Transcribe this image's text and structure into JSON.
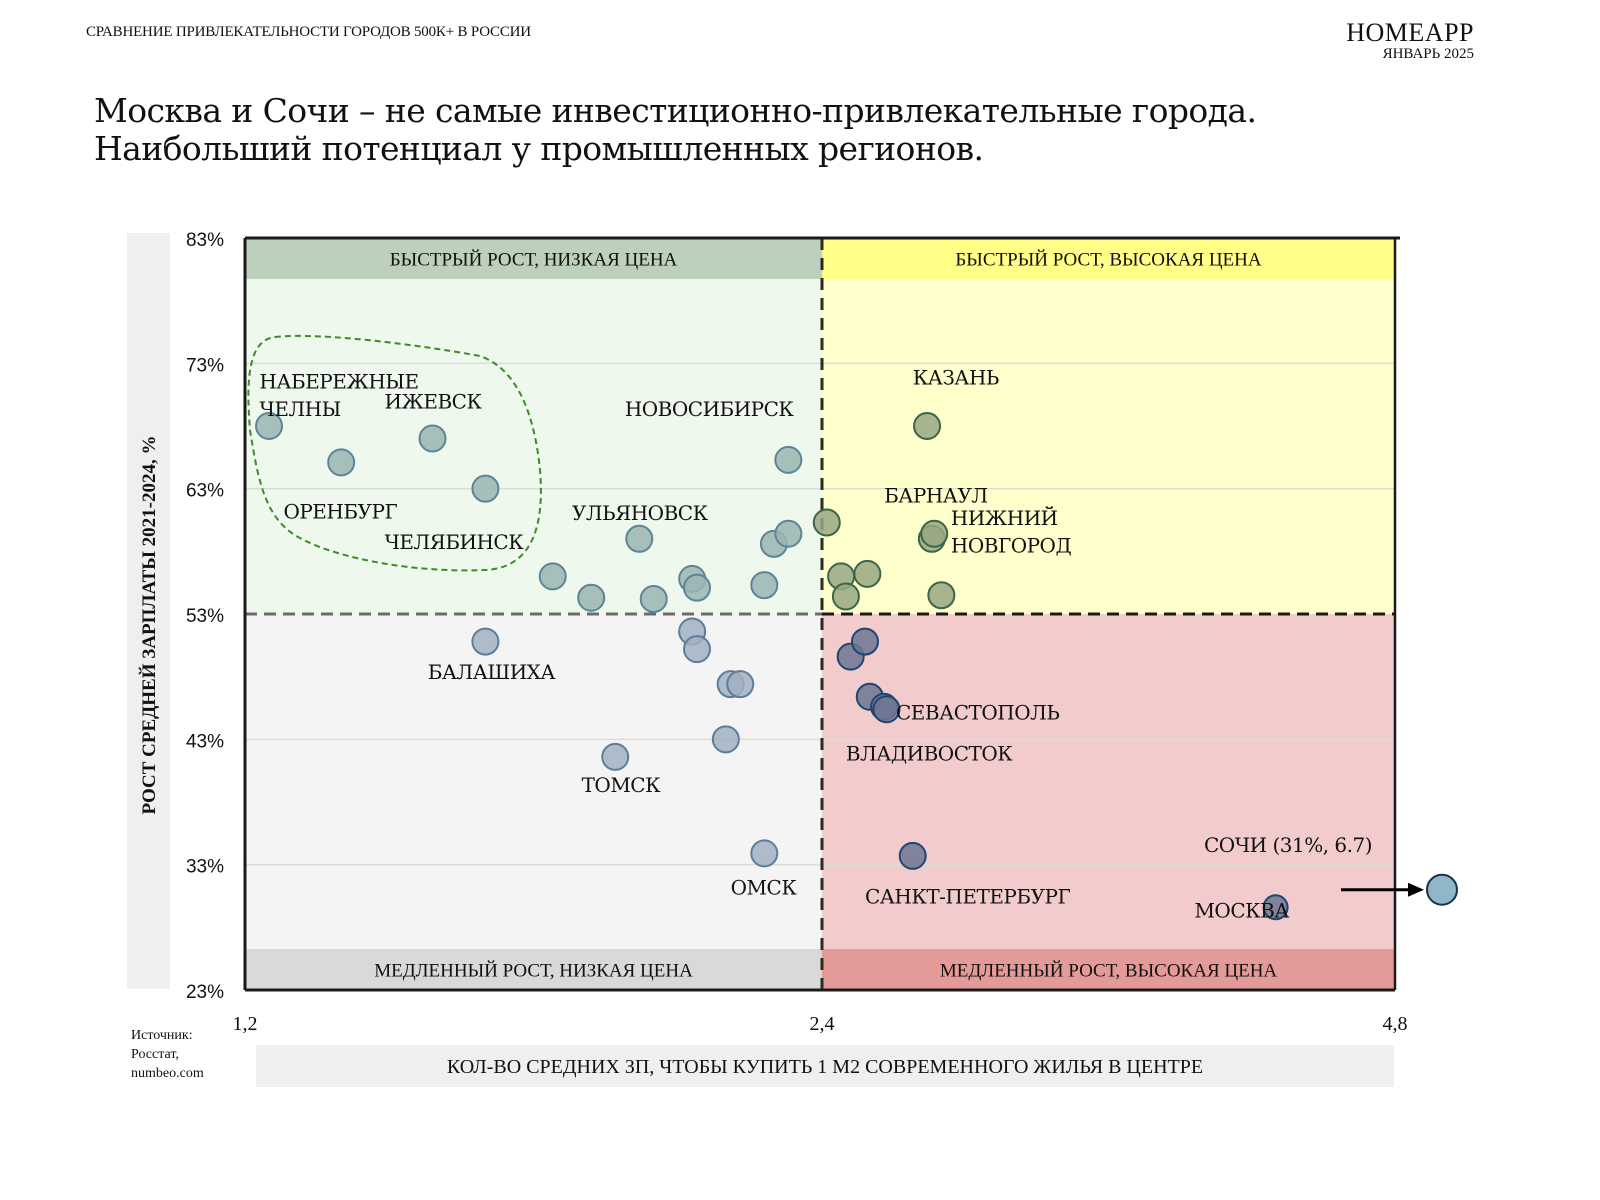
{
  "header": {
    "supertitle": "СРАВНЕНИЕ ПРИВЛЕКАТЕЛЬНОСТИ ГОРОДОВ 500К+ В РОССИИ",
    "brand": "HOMEAPP",
    "date": "ЯНВАРЬ 2025",
    "headline_line1": "Москва и Сочи – не самые инвестиционно-привлекательные города.",
    "headline_line2": "Наибольший потенциал у промышленных регионов."
  },
  "source": {
    "line1": "Источник:",
    "line2": "Росстат,",
    "line3": "numbeo.com"
  },
  "colors": {
    "q_top_left": "#eef8ec",
    "q_top_left_band": "#bdd0bb",
    "q_top_right": "#ffffcc",
    "q_top_right_band": "#ffff88",
    "q_bottom_left": "#f4f4f4",
    "q_bottom_left_band": "#d9d9d9",
    "q_bottom_right": "#f2cbcc",
    "q_bottom_right_band": "#e59a9a",
    "pt_top_left": "#9ab5b3",
    "pt_top_left_stroke": "#5d8497",
    "pt_top_right": "#96a881",
    "pt_top_right_stroke": "#3e6448",
    "pt_bottom_left": "#a0b0c2",
    "pt_bottom_left_stroke": "#5e7d9c",
    "pt_bottom_right": "#6d7593",
    "pt_bottom_right_stroke": "#1f4670",
    "pt_outlier": "#8fb7c9",
    "cluster_outline": "#3f8a2a"
  },
  "chart_data": {
    "type": "scatter",
    "title": "",
    "xlabel": "КОЛ-ВО СРЕДНИХ ЗП, ЧТОБЫ КУПИТЬ 1 М2 СОВРЕМЕННОГО ЖИЛЬЯ В ЦЕНТРЕ",
    "ylabel": "РОСТ СРЕДНЕЙ ЗАРПЛАТЫ 2021-2024, %",
    "xlim": [
      1.2,
      4.8
    ],
    "ylim": [
      23,
      83
    ],
    "x_split": 2.4,
    "y_split": 53,
    "x_ticks": [
      "1,2",
      "2,4",
      "4,8"
    ],
    "x_tick_values": [
      1.2,
      2.4,
      4.8
    ],
    "x_scale": "piecewise-linear (1,2–2,4 and 2,4–4,8 occupy equal halves)",
    "y_ticks": [
      "83%",
      "73%",
      "63%",
      "53%",
      "43%",
      "33%",
      "23%"
    ],
    "y_tick_values": [
      83,
      73,
      63,
      53,
      43,
      33,
      23
    ],
    "grid": "horizontal",
    "quadrants": [
      {
        "id": "top_left",
        "label": "БЫСТРЫЙ РОСТ, НИЗКАЯ ЦЕНА"
      },
      {
        "id": "top_right",
        "label": "БЫСТРЫЙ РОСТ, ВЫСОКАЯ ЦЕНА"
      },
      {
        "id": "bottom_left",
        "label": "МЕДЛЕННЫЙ РОСТ, НИЗКАЯ ЦЕНА"
      },
      {
        "id": "bottom_right",
        "label": "МЕДЛЕННЫЙ РОСТ, ВЫСОКАЯ ЦЕНА"
      }
    ],
    "points": [
      {
        "x": 1.25,
        "y": 68.0,
        "q": "top_left"
      },
      {
        "x": 1.4,
        "y": 65.1,
        "q": "top_left"
      },
      {
        "x": 1.59,
        "y": 67.0,
        "q": "top_left"
      },
      {
        "x": 1.7,
        "y": 63.0,
        "q": "top_left"
      },
      {
        "x": 1.84,
        "y": 56.0,
        "q": "top_left"
      },
      {
        "x": 1.92,
        "y": 54.3,
        "q": "top_left"
      },
      {
        "x": 2.02,
        "y": 59.0,
        "q": "top_left"
      },
      {
        "x": 2.05,
        "y": 54.2,
        "q": "top_left"
      },
      {
        "x": 2.13,
        "y": 55.8,
        "q": "top_left"
      },
      {
        "x": 2.14,
        "y": 55.1,
        "q": "top_left"
      },
      {
        "x": 2.28,
        "y": 55.3,
        "q": "top_left"
      },
      {
        "x": 2.3,
        "y": 58.6,
        "q": "top_left"
      },
      {
        "x": 2.33,
        "y": 59.4,
        "q": "top_left"
      },
      {
        "x": 2.33,
        "y": 65.3,
        "q": "top_left"
      },
      {
        "x": 2.42,
        "y": 60.3,
        "q": "top_right"
      },
      {
        "x": 2.48,
        "y": 56.0,
        "q": "top_right"
      },
      {
        "x": 2.5,
        "y": 54.4,
        "q": "top_right"
      },
      {
        "x": 2.59,
        "y": 56.2,
        "q": "top_right"
      },
      {
        "x": 2.84,
        "y": 68.0,
        "q": "top_right"
      },
      {
        "x": 2.86,
        "y": 59.0,
        "q": "top_right"
      },
      {
        "x": 2.87,
        "y": 59.4,
        "q": "top_right"
      },
      {
        "x": 2.9,
        "y": 54.5,
        "q": "top_right"
      },
      {
        "x": 1.7,
        "y": 50.8,
        "q": "bottom_left"
      },
      {
        "x": 2.13,
        "y": 51.6,
        "q": "bottom_left"
      },
      {
        "x": 2.14,
        "y": 50.2,
        "q": "bottom_left"
      },
      {
        "x": 2.21,
        "y": 47.4,
        "q": "bottom_left"
      },
      {
        "x": 2.23,
        "y": 47.4,
        "q": "bottom_left"
      },
      {
        "x": 2.2,
        "y": 43.0,
        "q": "bottom_left"
      },
      {
        "x": 1.97,
        "y": 41.6,
        "q": "bottom_left"
      },
      {
        "x": 2.28,
        "y": 33.9,
        "q": "bottom_left"
      },
      {
        "x": 2.52,
        "y": 49.6,
        "q": "bottom_right"
      },
      {
        "x": 2.58,
        "y": 50.8,
        "q": "bottom_right"
      },
      {
        "x": 2.6,
        "y": 46.4,
        "q": "bottom_right"
      },
      {
        "x": 2.66,
        "y": 45.6,
        "q": "bottom_right"
      },
      {
        "x": 2.67,
        "y": 45.4,
        "q": "bottom_right"
      },
      {
        "x": 2.78,
        "y": 33.7,
        "q": "bottom_right"
      },
      {
        "x": 4.3,
        "y": 29.6,
        "q": "bottom_right"
      }
    ],
    "outlier": {
      "name": "Сочи",
      "x": 6.7,
      "y": 31,
      "shown_off_axis": true
    },
    "annotations": [
      {
        "text": "НАБЕРЕЖНЫЕ",
        "x": 1.23,
        "y": 71.0
      },
      {
        "text": "ЧЕЛНЫ",
        "x": 1.23,
        "y": 68.8
      },
      {
        "text": "ИЖЕВСК",
        "x": 1.49,
        "y": 69.4
      },
      {
        "text": "ОРЕНБУРГ",
        "x": 1.28,
        "y": 60.6
      },
      {
        "text": "ЧЕЛЯБИНСК",
        "x": 1.49,
        "y": 58.2
      },
      {
        "text": "НОВОСИБИРСК",
        "x": 1.99,
        "y": 68.8
      },
      {
        "text": "УЛЬЯНОВСК",
        "x": 1.88,
        "y": 60.5
      },
      {
        "text": "КАЗАНЬ",
        "x": 2.78,
        "y": 71.3
      },
      {
        "text": "БАРНАУЛ",
        "x": 2.66,
        "y": 61.9
      },
      {
        "text": "НИЖНИЙ",
        "x": 2.94,
        "y": 60.1
      },
      {
        "text": "НОВГОРОД",
        "x": 2.94,
        "y": 57.9
      },
      {
        "text": "БАЛАШИХА",
        "x": 1.58,
        "y": 47.8
      },
      {
        "text": "ТОМСК",
        "x": 1.9,
        "y": 38.8
      },
      {
        "text": "ОМСК",
        "x": 2.21,
        "y": 30.6
      },
      {
        "text": "СЕВАСТОПОЛЬ",
        "x": 2.71,
        "y": 44.6
      },
      {
        "text": "ВЛАДИВОСТОК",
        "x": 2.5,
        "y": 41.3
      },
      {
        "text": "САНКТ-ПЕТЕРБУРГ",
        "x": 2.58,
        "y": 29.9
      },
      {
        "text": "МОСКВА",
        "x": 3.96,
        "y": 28.8
      },
      {
        "text": "СОЧИ (31%, 6.7)",
        "x": 4.0,
        "y": 34.0
      }
    ]
  }
}
